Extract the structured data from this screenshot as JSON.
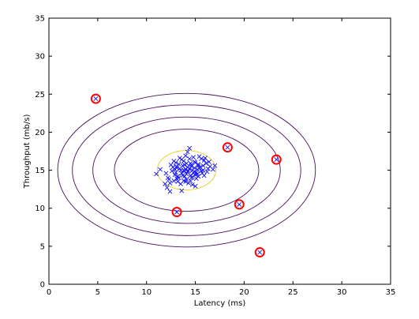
{
  "chart_data": {
    "type": "scatter",
    "title": "",
    "xlabel": "Latency (ms)",
    "ylabel": "Throughput (mb/s)",
    "xlim": [
      0,
      35
    ],
    "ylim": [
      0,
      35
    ],
    "xticks": [
      "0",
      "5",
      "10",
      "15",
      "20",
      "25",
      "30",
      "35"
    ],
    "yticks": [
      "0",
      "5",
      "10",
      "15",
      "20",
      "25",
      "30",
      "35"
    ],
    "grid": false,
    "legend": "none",
    "contours": {
      "center": [
        14.1,
        15.0
      ],
      "levels": [
        {
          "rx": 3.0,
          "ry": 2.6,
          "color": "#e0d020"
        },
        {
          "rx": 7.4,
          "ry": 5.4,
          "color": "#4a1060"
        },
        {
          "rx": 9.6,
          "ry": 7.0,
          "color": "#4a1060"
        },
        {
          "rx": 11.7,
          "ry": 8.6,
          "color": "#4a1060"
        },
        {
          "rx": 13.2,
          "ry": 10.1,
          "color": "#4a1060"
        }
      ]
    },
    "series": [
      {
        "marker": "x",
        "color": "#1010ff",
        "points": [
          [
            13.2,
            14.2
          ],
          [
            14.5,
            15.9
          ],
          [
            15.1,
            14.7
          ],
          [
            13.8,
            16.2
          ],
          [
            14.9,
            15.3
          ],
          [
            13.1,
            13.9
          ],
          [
            15.8,
            15.6
          ],
          [
            14.2,
            14.8
          ],
          [
            12.7,
            15.4
          ],
          [
            14.0,
            13.5
          ],
          [
            15.4,
            16.8
          ],
          [
            13.6,
            14.6
          ],
          [
            14.7,
            14.1
          ],
          [
            16.1,
            15.9
          ],
          [
            12.9,
            14.4
          ],
          [
            13.9,
            15.7
          ],
          [
            15.2,
            15.1
          ],
          [
            14.4,
            16.5
          ],
          [
            12.4,
            13.3
          ],
          [
            14.8,
            14.6
          ],
          [
            13.4,
            15.2
          ],
          [
            15.6,
            14.9
          ],
          [
            14.1,
            13.8
          ],
          [
            13.0,
            16.0
          ],
          [
            15.9,
            16.3
          ],
          [
            14.6,
            15.5
          ],
          [
            13.7,
            14.3
          ],
          [
            12.8,
            13.6
          ],
          [
            15.3,
            15.8
          ],
          [
            14.3,
            14.9
          ],
          [
            16.3,
            15.2
          ],
          [
            13.5,
            13.2
          ],
          [
            14.0,
            16.9
          ],
          [
            12.6,
            14.9
          ],
          [
            15.0,
            14.4
          ],
          [
            13.3,
            15.8
          ],
          [
            14.9,
            16.1
          ],
          [
            15.7,
            14.6
          ],
          [
            13.8,
            15.0
          ],
          [
            12.2,
            14.0
          ],
          [
            14.5,
            13.6
          ],
          [
            16.0,
            16.6
          ],
          [
            13.1,
            15.5
          ],
          [
            14.2,
            15.4
          ],
          [
            15.5,
            15.4
          ],
          [
            13.6,
            16.4
          ],
          [
            14.7,
            15.0
          ],
          [
            12.9,
            15.1
          ],
          [
            15.1,
            13.9
          ],
          [
            13.9,
            14.2
          ],
          [
            14.4,
            15.2
          ],
          [
            16.5,
            15.5
          ],
          [
            13.2,
            13.5
          ],
          [
            14.8,
            16.7
          ],
          [
            15.3,
            14.2
          ],
          [
            12.5,
            15.7
          ],
          [
            14.1,
            14.5
          ],
          [
            13.4,
            16.6
          ],
          [
            15.8,
            15.0
          ],
          [
            14.6,
            14.0
          ],
          [
            13.0,
            14.7
          ],
          [
            15.0,
            16.0
          ],
          [
            14.3,
            13.3
          ],
          [
            12.3,
            13.8
          ],
          [
            16.2,
            14.8
          ],
          [
            13.7,
            15.6
          ],
          [
            14.0,
            15.1
          ],
          [
            15.6,
            16.5
          ],
          [
            13.3,
            14.0
          ],
          [
            14.9,
            14.8
          ],
          [
            12.8,
            16.2
          ],
          [
            15.4,
            15.3
          ],
          [
            14.2,
            17.4
          ],
          [
            13.5,
            15.0
          ],
          [
            16.4,
            16.1
          ],
          [
            12.0,
            14.6
          ],
          [
            14.7,
            13.1
          ],
          [
            13.1,
            15.3
          ],
          [
            15.2,
            14.5
          ],
          [
            14.5,
            14.3
          ],
          [
            13.8,
            13.6
          ],
          [
            15.9,
            14.3
          ],
          [
            11.0,
            14.5
          ],
          [
            11.9,
            13.2
          ],
          [
            14.4,
            17.9
          ],
          [
            15.0,
            12.9
          ],
          [
            12.4,
            12.2
          ],
          [
            16.8,
            15.1
          ],
          [
            11.4,
            15.1
          ],
          [
            13.6,
            12.3
          ],
          [
            17.0,
            15.6
          ],
          [
            12.1,
            12.7
          ],
          [
            14.1,
            15.9
          ],
          [
            13.9,
            14.9
          ],
          [
            14.6,
            15.7
          ],
          [
            15.3,
            15.6
          ]
        ]
      },
      {
        "name": "",
        "marker": "circle-x",
        "color": "#ff0000",
        "points": [
          [
            4.8,
            24.4
          ],
          [
            18.3,
            18.0
          ],
          [
            23.3,
            16.4
          ],
          [
            13.1,
            9.5
          ],
          [
            19.5,
            10.5
          ],
          [
            21.6,
            4.2
          ]
        ]
      }
    ]
  }
}
